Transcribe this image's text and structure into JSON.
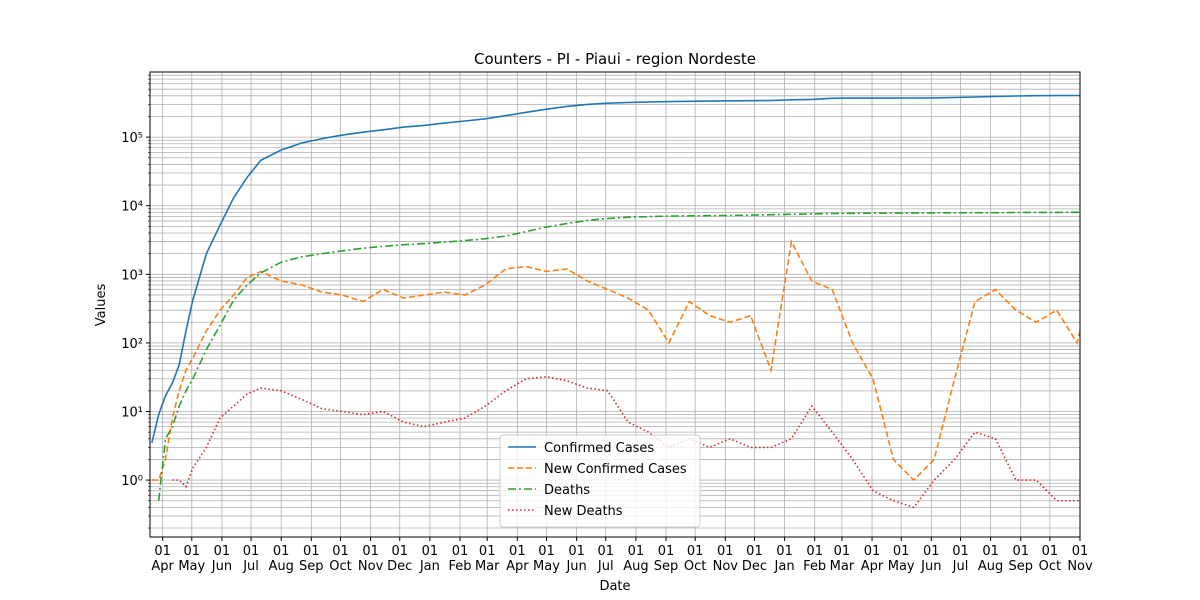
{
  "chart_data": {
    "type": "line",
    "title": "Counters - PI - Piaui - region Nordeste",
    "xlabel": "Date",
    "ylabel": "Values",
    "yscale": "log",
    "grid": true,
    "legend": "lower center",
    "xlim": [
      -13,
      944
    ],
    "xticks": [
      {
        "value": 0,
        "label": "01\nApr"
      },
      {
        "value": 30,
        "label": "01\nMay"
      },
      {
        "value": 61,
        "label": "01\nJun"
      },
      {
        "value": 91,
        "label": "01\nJul"
      },
      {
        "value": 122,
        "label": "01\nAug"
      },
      {
        "value": 153,
        "label": "01\nSep"
      },
      {
        "value": 183,
        "label": "01\nOct"
      },
      {
        "value": 214,
        "label": "01\nNov"
      },
      {
        "value": 244,
        "label": "01\nDec"
      },
      {
        "value": 275,
        "label": "01\nJan"
      },
      {
        "value": 306,
        "label": "01\nFeb"
      },
      {
        "value": 334,
        "label": "01\nMar"
      },
      {
        "value": 365,
        "label": "01\nApr"
      },
      {
        "value": 395,
        "label": "01\nMay"
      },
      {
        "value": 426,
        "label": "01\nJun"
      },
      {
        "value": 456,
        "label": "01\nJul"
      },
      {
        "value": 487,
        "label": "01\nAug"
      },
      {
        "value": 518,
        "label": "01\nSep"
      },
      {
        "value": 548,
        "label": "01\nOct"
      },
      {
        "value": 579,
        "label": "01\nNov"
      },
      {
        "value": 609,
        "label": "01\nDec"
      },
      {
        "value": 640,
        "label": "01\nJan"
      },
      {
        "value": 671,
        "label": "01\nFeb"
      },
      {
        "value": 699,
        "label": "01\nMar"
      },
      {
        "value": 730,
        "label": "01\nApr"
      },
      {
        "value": 760,
        "label": "01\nMay"
      },
      {
        "value": 791,
        "label": "01\nJun"
      },
      {
        "value": 821,
        "label": "01\nJul"
      },
      {
        "value": 852,
        "label": "01\nAug"
      },
      {
        "value": 883,
        "label": "01\nSep"
      },
      {
        "value": 913,
        "label": "01\nOct"
      },
      {
        "value": 944,
        "label": "01\nNov"
      }
    ],
    "ylim": [
      0.148,
      890000
    ],
    "yticks": [
      {
        "value": 1,
        "label": "10⁰"
      },
      {
        "value": 10,
        "label": "10¹"
      },
      {
        "value": 100,
        "label": "10²"
      },
      {
        "value": 1000,
        "label": "10³"
      },
      {
        "value": 10000,
        "label": "10⁴"
      },
      {
        "value": 100000,
        "label": "10⁵"
      }
    ],
    "yminorticks": [
      0.2,
      0.3,
      0.4,
      0.5,
      0.6,
      0.7,
      0.8,
      0.9,
      2,
      3,
      4,
      5,
      6,
      7,
      8,
      9,
      20,
      30,
      40,
      50,
      60,
      70,
      80,
      90,
      200,
      300,
      400,
      500,
      600,
      700,
      800,
      900,
      2000,
      3000,
      4000,
      5000,
      6000,
      7000,
      8000,
      9000,
      20000,
      30000,
      40000,
      50000,
      60000,
      70000,
      80000,
      90000,
      200000,
      300000,
      400000,
      500000,
      600000,
      700000,
      800000
    ],
    "x": [
      -11,
      -4,
      3,
      10,
      17,
      24,
      31,
      45,
      59,
      73,
      87,
      101,
      122,
      143,
      164,
      185,
      206,
      227,
      248,
      269,
      290,
      311,
      332,
      353,
      374,
      395,
      416,
      437,
      458,
      479,
      500,
      521,
      542,
      563,
      584,
      605,
      626,
      647,
      668,
      689,
      710,
      731,
      752,
      773,
      794,
      815,
      836,
      857,
      878,
      899,
      920,
      941,
      944
    ],
    "series": [
      {
        "name": "Confirmed Cases",
        "color": "#1f77b4",
        "dash": "solid",
        "values": [
          3.5,
          9,
          17,
          26,
          48,
          150,
          420,
          2000,
          5200,
          13000,
          26000,
          46000,
          65000,
          82000,
          95000,
          107000,
          118000,
          128000,
          140000,
          148000,
          160000,
          172000,
          185000,
          205000,
          230000,
          255000,
          280000,
          300000,
          312000,
          320000,
          325000,
          330000,
          333000,
          335000,
          338000,
          340000,
          342000,
          350000,
          355000,
          368000,
          370000,
          370000,
          371000,
          372000,
          373000,
          378000,
          385000,
          392000,
          398000,
          402000,
          404000,
          405000,
          405000
        ]
      },
      {
        "name": "New Confirmed Cases",
        "color": "#ff7f0e",
        "dash": "dashed",
        "values": [
          1,
          1,
          2,
          8,
          20,
          40,
          60,
          150,
          300,
          500,
          900,
          1100,
          800,
          700,
          550,
          500,
          400,
          600,
          450,
          500,
          550,
          500,
          700,
          1200,
          1300,
          1100,
          1200,
          800,
          600,
          450,
          300,
          100,
          400,
          250,
          200,
          250,
          40,
          3000,
          800,
          600,
          100,
          30,
          2,
          1,
          2,
          30,
          400,
          600,
          300,
          200,
          300,
          100,
          150
        ]
      },
      {
        "name": "Deaths",
        "color": "#2ca02c",
        "dash": "dashdot",
        "values": [
          null,
          0.5,
          4,
          6,
          12,
          20,
          30,
          80,
          180,
          420,
          700,
          1050,
          1500,
          1800,
          2000,
          2200,
          2400,
          2550,
          2700,
          2800,
          2950,
          3100,
          3300,
          3600,
          4200,
          4900,
          5500,
          6100,
          6500,
          6800,
          6950,
          7050,
          7100,
          7150,
          7200,
          7300,
          7400,
          7500,
          7600,
          7700,
          7750,
          7780,
          7800,
          7820,
          7850,
          7870,
          7900,
          7920,
          7950,
          7980,
          8000,
          8020,
          8050
        ]
      },
      {
        "name": "New Deaths",
        "color": "#d62728",
        "dash": "dotted",
        "values": [
          null,
          null,
          null,
          1,
          1,
          0.8,
          1.5,
          3,
          8,
          12,
          18,
          22,
          20,
          15,
          11,
          10,
          9,
          10,
          7,
          6,
          7,
          8,
          12,
          20,
          30,
          32,
          28,
          22,
          20,
          7,
          5,
          3,
          4,
          3,
          4,
          3,
          3,
          4,
          12,
          5,
          2,
          0.7,
          0.5,
          0.4,
          1,
          2,
          5,
          4,
          1,
          1,
          0.5,
          0.5,
          0.5
        ]
      }
    ]
  }
}
